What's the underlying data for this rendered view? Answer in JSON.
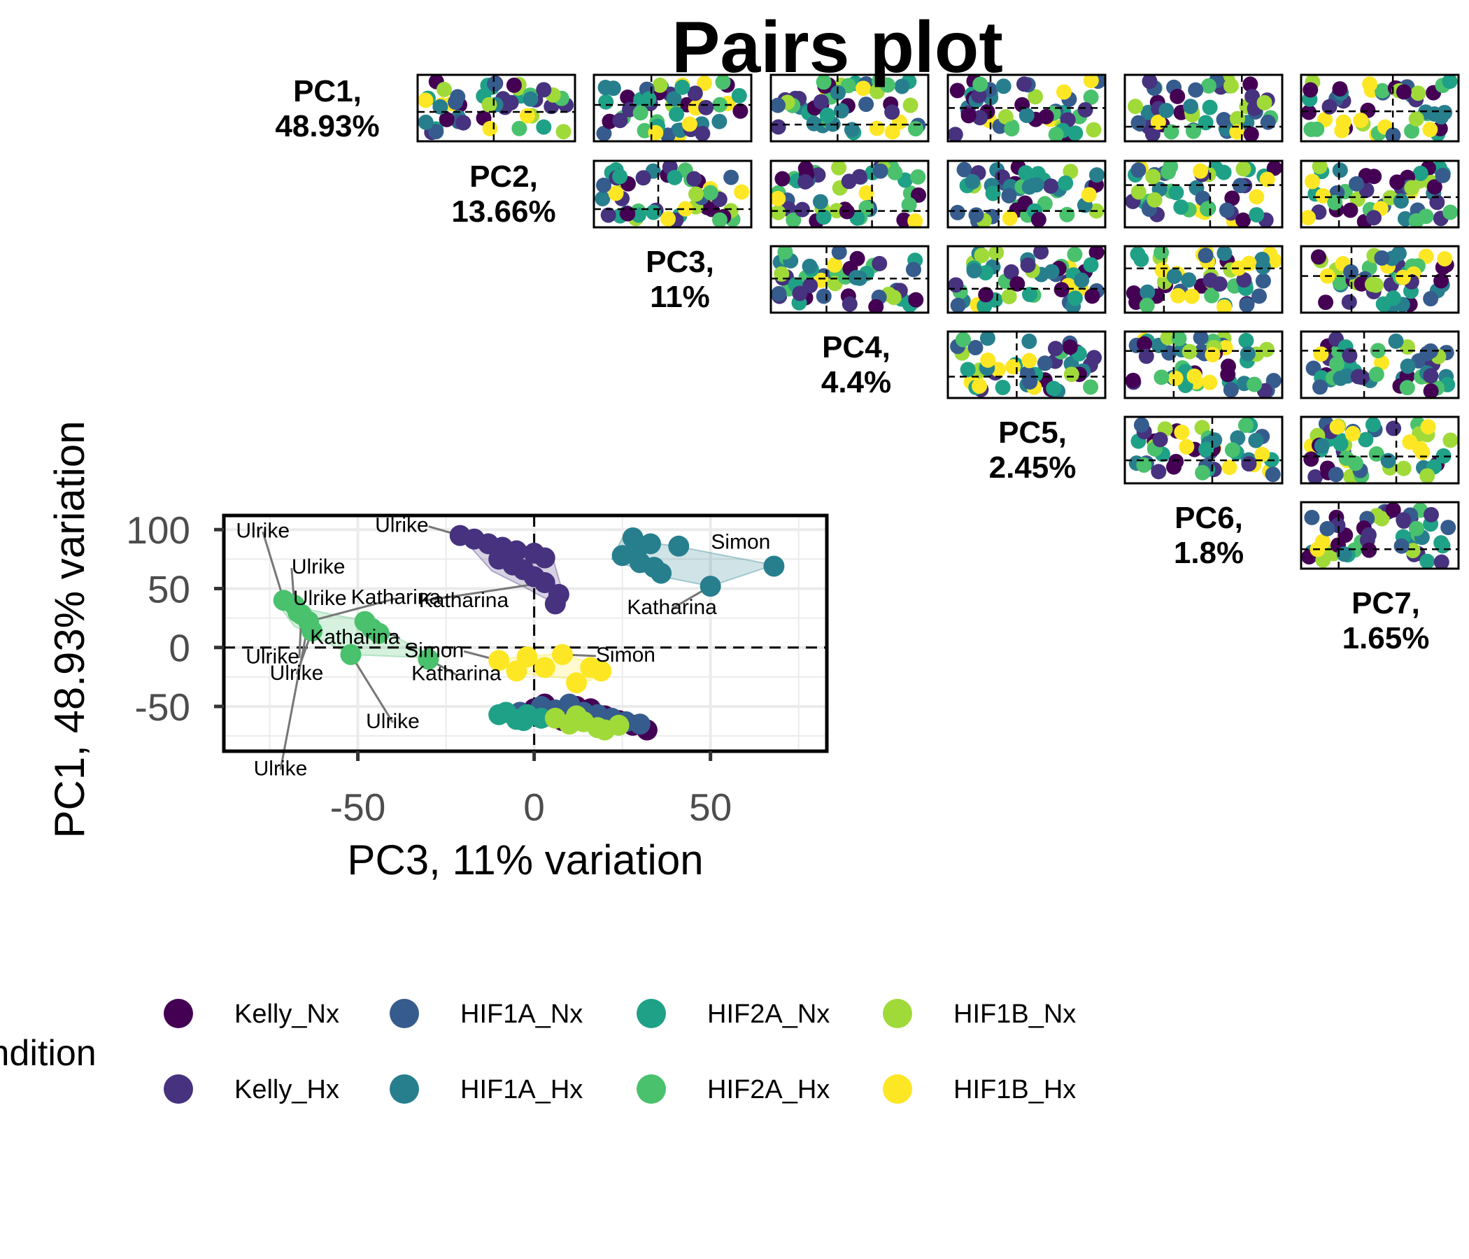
{
  "title": "Pairs plot",
  "diagonal_labels": [
    {
      "name": "PC1,",
      "pct": "48.93%"
    },
    {
      "name": "PC2,",
      "pct": "13.66%"
    },
    {
      "name": "PC3,",
      "pct": "11%"
    },
    {
      "name": "PC4,",
      "pct": "4.4%"
    },
    {
      "name": "PC5,",
      "pct": "2.45%"
    },
    {
      "name": "PC6,",
      "pct": "1.8%"
    },
    {
      "name": "PC7,",
      "pct": "1.65%"
    }
  ],
  "legend": {
    "title": "Condition",
    "items": [
      {
        "label": "Kelly_Nx",
        "color": "#440154"
      },
      {
        "label": "Kelly_Hx",
        "color": "#46327e"
      },
      {
        "label": "HIF1A_Nx",
        "color": "#365c8d"
      },
      {
        "label": "HIF1A_Hx",
        "color": "#277f8e"
      },
      {
        "label": "HIF2A_Nx",
        "color": "#1fa187"
      },
      {
        "label": "HIF2A_Hx",
        "color": "#4ac16d"
      },
      {
        "label": "HIF1B_Nx",
        "color": "#a0da39"
      },
      {
        "label": "HIF1B_Hx",
        "color": "#fde725"
      }
    ]
  },
  "chart_data": {
    "type": "scatter",
    "xlabel": "PC3, 11% variation",
    "ylabel": "PC1, 48.93% variation",
    "xlim": [
      -88,
      83
    ],
    "ylim": [
      -88,
      112
    ],
    "x_ticks": [
      -50,
      0,
      50
    ],
    "y_ticks": [
      100,
      50,
      0,
      -50
    ],
    "grid": true,
    "reference_lines": {
      "x": 0,
      "y": 0
    },
    "hulls": [
      {
        "group": "Kelly_Hx",
        "color": "#46327e",
        "points": [
          [
            -21,
            95
          ],
          [
            -10,
            88
          ],
          [
            0,
            85
          ],
          [
            5,
            79
          ],
          [
            8,
            48
          ],
          [
            6,
            37
          ],
          [
            -2,
            50
          ],
          [
            -12,
            65
          ]
        ]
      },
      {
        "group": "HIF1A_Hx",
        "color": "#277f8e",
        "points": [
          [
            25,
            93
          ],
          [
            42,
            85
          ],
          [
            68,
            70
          ],
          [
            50,
            52
          ],
          [
            33,
            62
          ],
          [
            22,
            75
          ]
        ]
      },
      {
        "group": "HIF2A_Hx",
        "color": "#4ac16d",
        "points": [
          [
            -72,
            40
          ],
          [
            -67,
            34
          ],
          [
            -47,
            22
          ],
          [
            -43,
            15
          ],
          [
            -28,
            -9
          ],
          [
            -52,
            -6
          ],
          [
            -68,
            18
          ],
          [
            -73,
            38
          ]
        ]
      },
      {
        "group": "HIF1B_Hx",
        "color": "#fde725",
        "points": [
          [
            -11,
            -10
          ],
          [
            -4,
            -22
          ],
          [
            5,
            -25
          ],
          [
            16,
            -28
          ],
          [
            20,
            -18
          ],
          [
            8,
            -5
          ]
        ]
      },
      {
        "group": "Nx",
        "color": "#a0da39",
        "points": [
          [
            -13,
            -55
          ],
          [
            5,
            -45
          ],
          [
            12,
            -50
          ],
          [
            33,
            -67
          ],
          [
            30,
            -72
          ],
          [
            18,
            -72
          ],
          [
            0,
            -60
          ]
        ]
      }
    ],
    "series": [
      {
        "name": "Kelly_Nx",
        "color": "#440154",
        "points": [
          [
            0,
            -52
          ],
          [
            3,
            -48
          ],
          [
            6,
            -55
          ],
          [
            12,
            -50
          ],
          [
            16,
            -52
          ],
          [
            20,
            -58
          ],
          [
            24,
            -62
          ],
          [
            28,
            -66
          ],
          [
            32,
            -70
          ],
          [
            8,
            -62
          ]
        ]
      },
      {
        "name": "Kelly_Hx",
        "color": "#46327e",
        "points": [
          [
            -21,
            95
          ],
          [
            -17,
            92
          ],
          [
            -13,
            88
          ],
          [
            -9,
            85
          ],
          [
            -5,
            82
          ],
          [
            0,
            80
          ],
          [
            3,
            76
          ],
          [
            -10,
            75
          ],
          [
            -6,
            70
          ],
          [
            -3,
            66
          ],
          [
            0,
            60
          ],
          [
            3,
            55
          ],
          [
            7,
            45
          ],
          [
            6,
            37
          ],
          [
            -8,
            78
          ]
        ]
      },
      {
        "name": "HIF1A_Nx",
        "color": "#365c8d",
        "points": [
          [
            -4,
            -55
          ],
          [
            2,
            -50
          ],
          [
            6,
            -53
          ],
          [
            10,
            -48
          ],
          [
            14,
            -55
          ],
          [
            18,
            -57
          ],
          [
            22,
            -60
          ],
          [
            26,
            -63
          ],
          [
            30,
            -65
          ],
          [
            4,
            -58
          ]
        ]
      },
      {
        "name": "HIF1A_Hx",
        "color": "#277f8e",
        "points": [
          [
            28,
            93
          ],
          [
            33,
            88
          ],
          [
            41,
            86
          ],
          [
            25,
            78
          ],
          [
            30,
            72
          ],
          [
            34,
            68
          ],
          [
            36,
            63
          ],
          [
            50,
            52
          ],
          [
            68,
            69
          ],
          [
            29,
            82
          ]
        ]
      },
      {
        "name": "HIF2A_Nx",
        "color": "#1fa187",
        "points": [
          [
            -8,
            -55
          ],
          [
            -5,
            -61
          ],
          [
            -2,
            -57
          ],
          [
            2,
            -60
          ],
          [
            -10,
            -57
          ],
          [
            -3,
            -62
          ]
        ]
      },
      {
        "name": "HIF2A_Hx",
        "color": "#4ac16d",
        "points": [
          [
            -71,
            40
          ],
          [
            -68,
            36
          ],
          [
            -66,
            28
          ],
          [
            -64,
            22
          ],
          [
            -63,
            14
          ],
          [
            -48,
            22
          ],
          [
            -46,
            16
          ],
          [
            -44,
            12
          ],
          [
            -52,
            -6
          ],
          [
            -30,
            -10
          ],
          [
            -67,
            30
          ]
        ]
      },
      {
        "name": "HIF1B_Nx",
        "color": "#a0da39",
        "points": [
          [
            6,
            -60
          ],
          [
            10,
            -65
          ],
          [
            14,
            -63
          ],
          [
            18,
            -68
          ],
          [
            20,
            -70
          ],
          [
            24,
            -66
          ],
          [
            12,
            -58
          ]
        ]
      },
      {
        "name": "HIF1B_Hx",
        "color": "#fde725",
        "points": [
          [
            -10,
            -11
          ],
          [
            -5,
            -20
          ],
          [
            -2,
            -8
          ],
          [
            3,
            -17
          ],
          [
            8,
            -6
          ],
          [
            12,
            -30
          ],
          [
            16,
            -17
          ],
          [
            19,
            -20
          ]
        ]
      }
    ],
    "annotations": [
      {
        "text": "Ulrike",
        "x": -21,
        "y": 95
      },
      {
        "text": "Simon",
        "x": 68,
        "y": 69
      },
      {
        "text": "Katharina",
        "x": 50,
        "y": 52
      },
      {
        "text": "Ulrike",
        "x": -71,
        "y": 40
      },
      {
        "text": "Ulrike",
        "x": -68,
        "y": 36
      },
      {
        "text": "Ulrike",
        "x": -67,
        "y": 30
      },
      {
        "text": "Katharina",
        "x": -64,
        "y": 22
      },
      {
        "text": "Katharina",
        "x": 3,
        "y": 55
      },
      {
        "text": "Ulrike",
        "x": -63,
        "y": 14
      },
      {
        "text": "Ulrike",
        "x": -66,
        "y": 28
      },
      {
        "text": "Katharina",
        "x": -48,
        "y": 22
      },
      {
        "text": "Katharina",
        "x": -30,
        "y": -10
      },
      {
        "text": "Simon",
        "x": -10,
        "y": -11
      },
      {
        "text": "Simon",
        "x": 8,
        "y": -6
      },
      {
        "text": "Ulrike",
        "x": -64,
        "y": 22
      },
      {
        "text": "Ulrike",
        "x": -52,
        "y": -6
      }
    ]
  }
}
